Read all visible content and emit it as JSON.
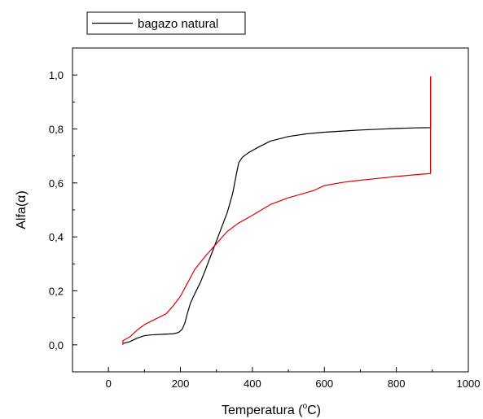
{
  "chart_data": {
    "type": "line",
    "xlabel_prefix": "Temperatura (",
    "xlabel_degree": "o",
    "xlabel_suffix": "C)",
    "ylabel_prefix": "Alfa(",
    "ylabel_symbol": "α",
    "ylabel_suffix": ")",
    "xlim": [
      -100,
      1000
    ],
    "ylim": [
      -0.1,
      1.1
    ],
    "x_ticks": [
      0,
      200,
      400,
      600,
      800,
      1000
    ],
    "x_tick_labels": [
      "0",
      "200",
      "400",
      "600",
      "800",
      "1000"
    ],
    "y_ticks": [
      0.0,
      0.2,
      0.4,
      0.6,
      0.8,
      1.0
    ],
    "y_tick_labels": [
      "0,0",
      "0,2",
      "0,4",
      "0,6",
      "0,8",
      "1,0"
    ],
    "legend_position": "top-left, above plot",
    "series": [
      {
        "name": "bagazo natural",
        "color": "#000000",
        "in_legend": true,
        "points": [
          [
            40,
            0.005
          ],
          [
            60,
            0.012
          ],
          [
            80,
            0.025
          ],
          [
            100,
            0.034
          ],
          [
            120,
            0.037
          ],
          [
            150,
            0.039
          ],
          [
            180,
            0.041
          ],
          [
            195,
            0.046
          ],
          [
            205,
            0.058
          ],
          [
            212,
            0.08
          ],
          [
            220,
            0.12
          ],
          [
            228,
            0.155
          ],
          [
            240,
            0.19
          ],
          [
            255,
            0.23
          ],
          [
            270,
            0.28
          ],
          [
            290,
            0.35
          ],
          [
            310,
            0.42
          ],
          [
            330,
            0.49
          ],
          [
            345,
            0.56
          ],
          [
            355,
            0.63
          ],
          [
            362,
            0.675
          ],
          [
            372,
            0.695
          ],
          [
            390,
            0.713
          ],
          [
            420,
            0.735
          ],
          [
            450,
            0.755
          ],
          [
            500,
            0.772
          ],
          [
            550,
            0.782
          ],
          [
            600,
            0.788
          ],
          [
            650,
            0.792
          ],
          [
            700,
            0.796
          ],
          [
            750,
            0.799
          ],
          [
            800,
            0.802
          ],
          [
            850,
            0.804
          ],
          [
            895,
            0.805
          ],
          [
            895,
            0.995
          ]
        ]
      },
      {
        "name": "",
        "color": "#e00000",
        "in_legend": false,
        "points": [
          [
            40,
            0.0
          ],
          [
            40,
            0.015
          ],
          [
            60,
            0.03
          ],
          [
            80,
            0.055
          ],
          [
            100,
            0.075
          ],
          [
            130,
            0.095
          ],
          [
            160,
            0.115
          ],
          [
            180,
            0.145
          ],
          [
            200,
            0.18
          ],
          [
            220,
            0.23
          ],
          [
            240,
            0.28
          ],
          [
            270,
            0.33
          ],
          [
            300,
            0.375
          ],
          [
            330,
            0.42
          ],
          [
            360,
            0.45
          ],
          [
            400,
            0.48
          ],
          [
            450,
            0.52
          ],
          [
            500,
            0.545
          ],
          [
            540,
            0.56
          ],
          [
            570,
            0.572
          ],
          [
            600,
            0.59
          ],
          [
            650,
            0.602
          ],
          [
            700,
            0.61
          ],
          [
            750,
            0.617
          ],
          [
            800,
            0.624
          ],
          [
            850,
            0.63
          ],
          [
            895,
            0.635
          ],
          [
            895,
            0.995
          ]
        ]
      }
    ]
  }
}
